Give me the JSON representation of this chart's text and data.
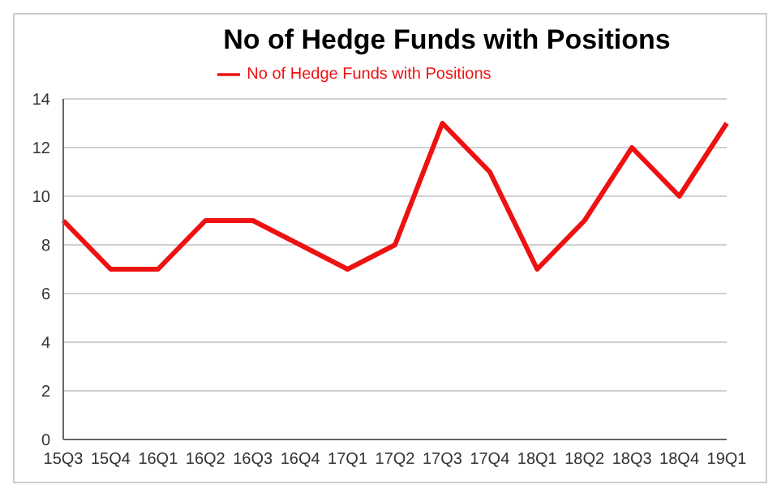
{
  "chart_data": {
    "type": "line",
    "title": "No of Hedge Funds with Positions",
    "categories": [
      "15Q3",
      "15Q4",
      "16Q1",
      "16Q2",
      "16Q3",
      "16Q4",
      "17Q1",
      "17Q2",
      "17Q3",
      "17Q4",
      "18Q1",
      "18Q2",
      "18Q3",
      "18Q4",
      "19Q1"
    ],
    "series": [
      {
        "name": "No of Hedge Funds with Positions",
        "color": "#ee1111",
        "values": [
          9,
          7,
          7,
          9,
          9,
          8,
          7,
          8,
          13,
          11,
          7,
          9,
          12,
          10,
          13
        ]
      }
    ],
    "ylim": [
      0,
      14
    ],
    "yticks": [
      0,
      2,
      4,
      6,
      8,
      10,
      12,
      14
    ],
    "grid": "y",
    "legend": "top",
    "marker": "none",
    "line_style": "solid"
  }
}
